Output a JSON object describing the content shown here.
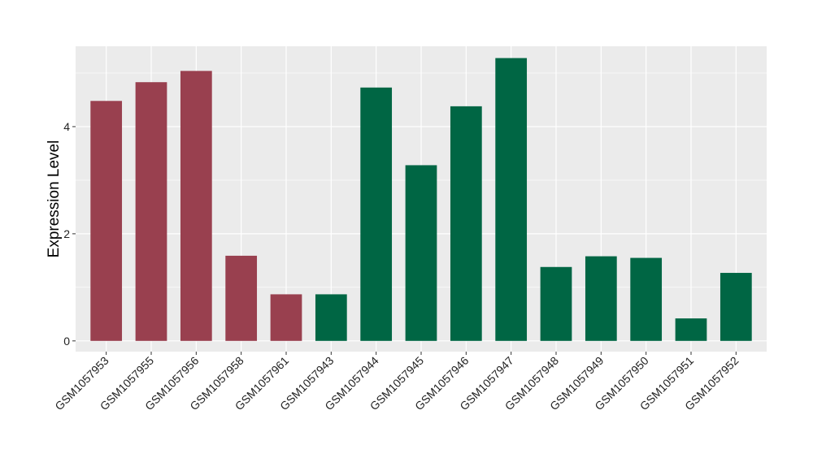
{
  "chart_data": {
    "type": "bar",
    "ylabel": "Expression Level",
    "xlabel": "",
    "title": "",
    "ylim": [
      -0.2,
      5.5
    ],
    "yticks": [
      0,
      2,
      4
    ],
    "grid": true,
    "legend": "none",
    "categories": [
      "GSM1057953",
      "GSM1057955",
      "GSM1057956",
      "GSM1057958",
      "GSM1057961",
      "GSM1057943",
      "GSM1057944",
      "GSM1057945",
      "GSM1057946",
      "GSM1057947",
      "GSM1057948",
      "GSM1057949",
      "GSM1057950",
      "GSM1057951",
      "GSM1057952"
    ],
    "values": [
      4.48,
      4.83,
      5.04,
      1.59,
      0.87,
      0.87,
      4.73,
      3.28,
      4.38,
      5.28,
      1.38,
      1.58,
      1.55,
      0.42,
      1.27
    ],
    "bar_colors": [
      "#99404f",
      "#99404f",
      "#99404f",
      "#99404f",
      "#99404f",
      "#006644",
      "#006644",
      "#006644",
      "#006644",
      "#006644",
      "#006644",
      "#006644",
      "#006644",
      "#006644",
      "#006644"
    ],
    "panel_background": "#ebebeb",
    "grid_color": "#ffffff"
  }
}
